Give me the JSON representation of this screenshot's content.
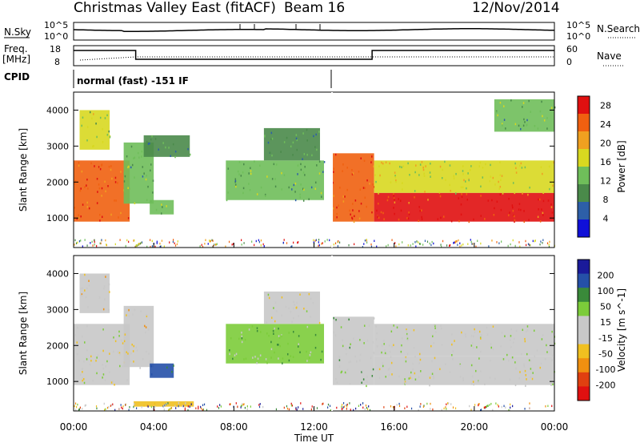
{
  "header": {
    "station": "Christmas Valley East (fitACF)",
    "beam": "Beam 16",
    "date": "12/Nov/2014"
  },
  "strip": {
    "nsky_label": "N.Sky",
    "nsearch_label": "N.Search",
    "freq_label": "Freq.",
    "freq_unit": "[MHz]",
    "nave_label": "Nave",
    "cpid_label": "CPID",
    "cpid_text": "normal (fast) -151 IF",
    "noise_ticks": [
      "10^5",
      "10^0"
    ],
    "freq_ticks": [
      "18",
      "8"
    ],
    "nave_ticks": [
      "60",
      "0"
    ]
  },
  "colors": {
    "power_scale": [
      "#1010d8",
      "#2d5fa8",
      "#4a8a4a",
      "#6fbe5a",
      "#d8d820",
      "#f0a020",
      "#f06010",
      "#e01010"
    ],
    "velocity_scale": [
      "#1a1a9a",
      "#2550a8",
      "#3a8a3a",
      "#7ccc3a",
      "#c8c8c8",
      "#c8c8c8",
      "#f0c020",
      "#f09010",
      "#e04010",
      "#e01010"
    ]
  },
  "chart_data": [
    {
      "type": "heatmap",
      "name": "power-panel",
      "quantity": "Power",
      "ylabel": "Slant Range [km]",
      "xlabel": "Time UT",
      "x_ticks": [
        "00:00",
        "04:00",
        "08:00",
        "12:00",
        "16:00",
        "20:00",
        "00:00"
      ],
      "x_range_hours": [
        0,
        24
      ],
      "y_ticks": [
        1000,
        2000,
        3000,
        4000
      ],
      "ylim": [
        180,
        4500
      ],
      "colorbar": {
        "label": "Power [dB]",
        "ticks": [
          4,
          8,
          12,
          16,
          20,
          24,
          28
        ],
        "range": [
          0,
          30
        ]
      },
      "echo_regions": [
        {
          "t0": 0.0,
          "t1": 2.8,
          "r0": 900,
          "r1": 2600,
          "value": 25
        },
        {
          "t0": 0.3,
          "t1": 1.8,
          "r0": 2900,
          "r1": 4000,
          "value": 15
        },
        {
          "t0": 2.5,
          "t1": 4.0,
          "r0": 1400,
          "r1": 3100,
          "value": 12
        },
        {
          "t0": 3.5,
          "t1": 5.8,
          "r0": 2700,
          "r1": 3300,
          "value": 10
        },
        {
          "t0": 3.8,
          "t1": 5.0,
          "r0": 1100,
          "r1": 1500,
          "value": 14
        },
        {
          "t0": 7.6,
          "t1": 12.5,
          "r0": 1500,
          "r1": 2600,
          "value": 12
        },
        {
          "t0": 9.5,
          "t1": 12.3,
          "r0": 2600,
          "r1": 3500,
          "value": 10
        },
        {
          "t0": 12.9,
          "t1": 15.0,
          "r0": 900,
          "r1": 2800,
          "value": 26
        },
        {
          "t0": 15.0,
          "t1": 24.0,
          "r0": 900,
          "r1": 1700,
          "value": 27
        },
        {
          "t0": 15.0,
          "t1": 24.0,
          "r0": 1700,
          "r1": 2600,
          "value": 17
        },
        {
          "t0": 21.0,
          "t1": 24.0,
          "r0": 3400,
          "r1": 4300,
          "value": 12
        }
      ]
    },
    {
      "type": "heatmap",
      "name": "velocity-panel",
      "quantity": "Velocity",
      "ylabel": "Slant Range [km]",
      "xlabel": "Time UT",
      "x_ticks": [
        "00:00",
        "04:00",
        "08:00",
        "12:00",
        "16:00",
        "20:00",
        "00:00"
      ],
      "x_range_hours": [
        0,
        24
      ],
      "y_ticks": [
        1000,
        2000,
        3000,
        4000
      ],
      "ylim": [
        180,
        4500
      ],
      "colorbar": {
        "label": "Velocity [m s^-1]",
        "ticks": [
          200,
          100,
          50,
          15,
          -15,
          -50,
          -100,
          -200
        ],
        "range": [
          -250,
          250
        ]
      },
      "echo_regions": [
        {
          "t0": 0.0,
          "t1": 2.8,
          "r0": 900,
          "r1": 2600,
          "value": 0
        },
        {
          "t0": 0.3,
          "t1": 1.8,
          "r0": 2900,
          "r1": 4000,
          "value": -40
        },
        {
          "t0": 2.5,
          "t1": 4.0,
          "r0": 1400,
          "r1": 3100,
          "value": -30
        },
        {
          "t0": 3.8,
          "t1": 5.0,
          "r0": 1100,
          "r1": 1500,
          "value": 150
        },
        {
          "t0": 7.6,
          "t1": 12.5,
          "r0": 1500,
          "r1": 2600,
          "value": 60
        },
        {
          "t0": 9.5,
          "t1": 12.3,
          "r0": 2600,
          "r1": 3500,
          "value": 0
        },
        {
          "t0": 12.9,
          "t1": 15.0,
          "r0": 900,
          "r1": 2800,
          "value": 50
        },
        {
          "t0": 15.0,
          "t1": 24.0,
          "r0": 900,
          "r1": 1700,
          "value": 0
        },
        {
          "t0": 15.0,
          "t1": 24.0,
          "r0": 1700,
          "r1": 2600,
          "value": 5
        },
        {
          "t0": 3.0,
          "t1": 6.0,
          "r0": 300,
          "r1": 450,
          "value": -60
        }
      ]
    }
  ]
}
